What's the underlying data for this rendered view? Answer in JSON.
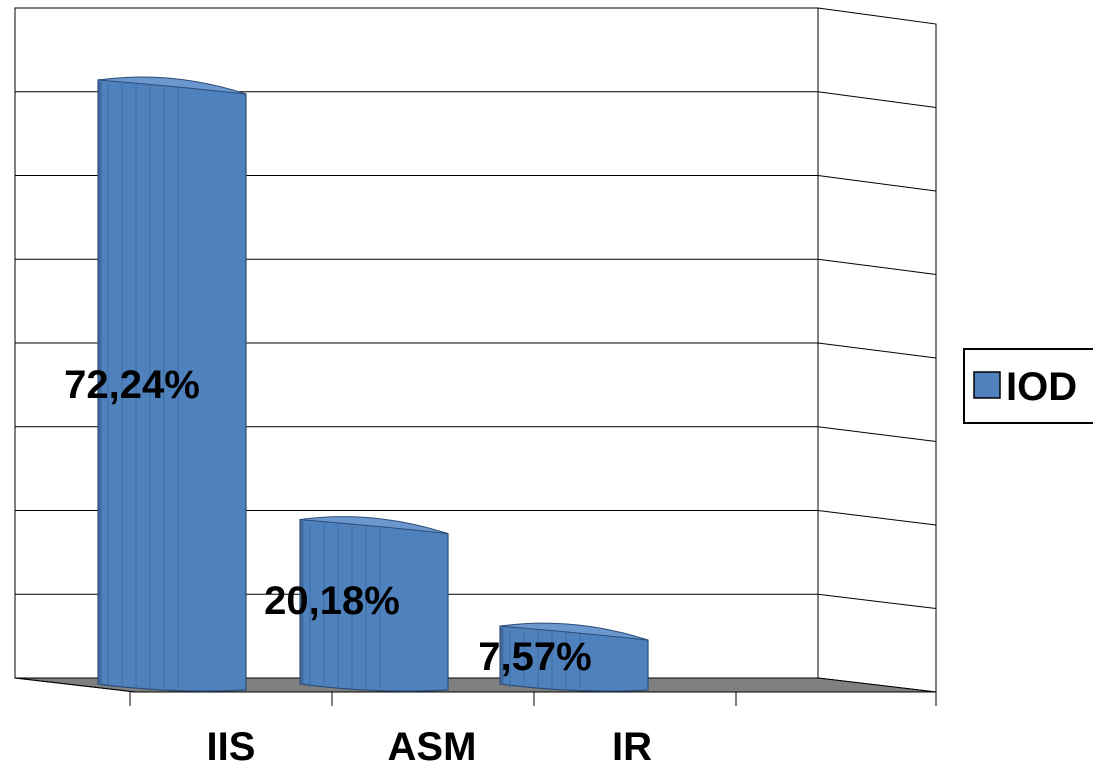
{
  "colors": {
    "bar_fill": "#4f81bd",
    "bar_dark": "#3f6aa0",
    "bar_top": "#6b97cf",
    "floor": "#808080",
    "grid": "#000000",
    "background": "#ffffff"
  },
  "chart_data": {
    "type": "bar",
    "style": "3d-cylinder",
    "categories": [
      "IIS",
      "ASM",
      "IR"
    ],
    "series": [
      {
        "name": "IOD",
        "values": [
          72.24,
          20.18,
          7.57
        ]
      }
    ],
    "data_labels": [
      "72,24%",
      "20,18%",
      "7,57%"
    ],
    "ylim": [
      0,
      80
    ],
    "grid": true,
    "legend": {
      "position": "right",
      "entries": [
        "IOD"
      ]
    }
  }
}
